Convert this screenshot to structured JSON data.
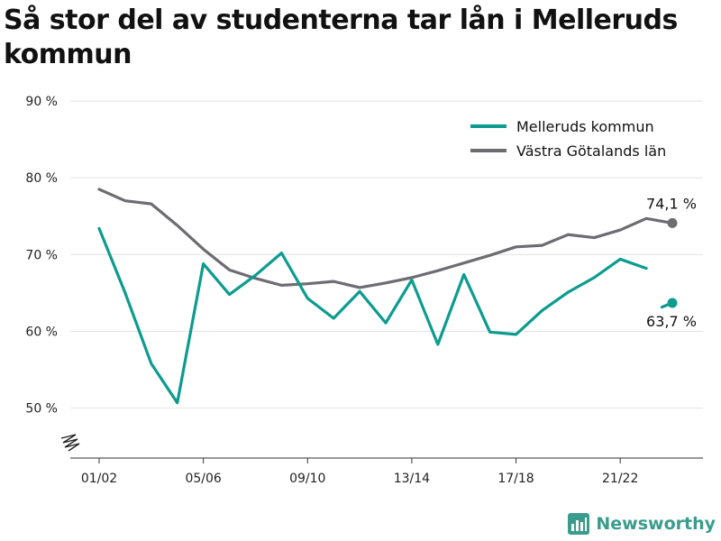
{
  "title": "Så stor del av studenterna tar lån i Melleruds kommun",
  "brand": {
    "name": "Newsworthy",
    "icon": "newsworthy-logo-icon",
    "color": "#3a9c8c"
  },
  "chart_data": {
    "type": "line",
    "title": "Så stor del av studenterna tar lån i Melleruds kommun",
    "xlabel": "",
    "ylabel": "",
    "ylim": [
      43.5,
      90
    ],
    "yticks": [
      50,
      60,
      70,
      80,
      90
    ],
    "ytick_labels": [
      "50 %",
      "60 %",
      "70 %",
      "80 %",
      "90 %"
    ],
    "x_categories": [
      "01/02",
      "02/03",
      "03/04",
      "04/05",
      "05/06",
      "06/07",
      "07/08",
      "08/09",
      "09/10",
      "10/11",
      "11/12",
      "12/13",
      "13/14",
      "14/15",
      "15/16",
      "16/17",
      "17/18",
      "18/19",
      "19/20",
      "20/21",
      "21/22",
      "22/23",
      "23/24"
    ],
    "xtick_labels": [
      "01/02",
      "05/06",
      "09/10",
      "13/14",
      "17/18",
      "21/22"
    ],
    "grid": "horizontal",
    "y_axis_break": true,
    "legend_position": "top-right",
    "series": [
      {
        "name": "Melleruds kommun",
        "color": "#0c9c8f",
        "values": [
          73.4,
          65.0,
          55.8,
          50.7,
          68.8,
          64.8,
          67.3,
          70.2,
          64.3,
          61.7,
          65.2,
          61.1,
          66.7,
          58.3,
          67.4,
          59.9,
          59.6,
          62.7,
          65.1,
          67.0,
          69.4,
          68.2,
          63.7
        ],
        "gap_after_index": 21,
        "end_label": "63,7 %"
      },
      {
        "name": "Västra Götalands län",
        "color": "#6e6c73",
        "values": [
          78.5,
          77.0,
          76.6,
          73.8,
          70.7,
          68.0,
          66.9,
          66.0,
          66.2,
          66.5,
          65.7,
          66.3,
          67.0,
          67.9,
          68.9,
          69.9,
          71.0,
          71.2,
          72.6,
          72.2,
          73.2,
          74.7,
          74.1
        ],
        "end_label": "74,1 %"
      }
    ]
  }
}
